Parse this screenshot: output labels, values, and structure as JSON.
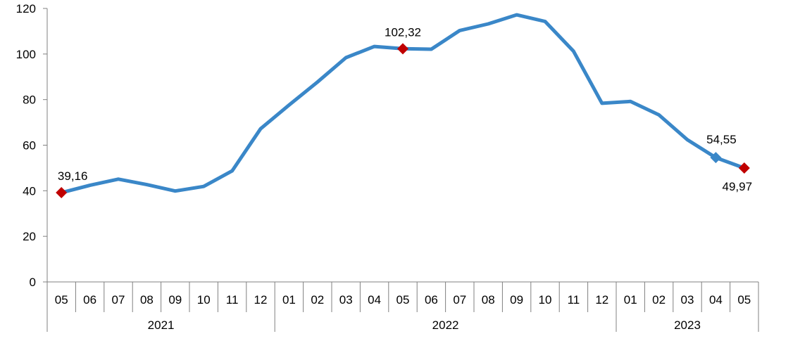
{
  "chart_data": {
    "type": "line",
    "title": "",
    "xlabel": "",
    "ylabel": "",
    "ylim": [
      0,
      120
    ],
    "yticks": [
      "0",
      "20",
      "40",
      "60",
      "80",
      "100",
      "120"
    ],
    "grid": false,
    "legend": "none",
    "line_color": "#3A87C8",
    "marker_color": "#C00000",
    "categories": [
      "05",
      "06",
      "07",
      "08",
      "09",
      "10",
      "11",
      "12",
      "01",
      "02",
      "03",
      "04",
      "05",
      "06",
      "07",
      "08",
      "09",
      "10",
      "11",
      "12",
      "01",
      "02",
      "03",
      "04",
      "05"
    ],
    "year_groups": [
      {
        "label": "2021",
        "start": 0,
        "end": 7
      },
      {
        "label": "2022",
        "start": 8,
        "end": 19
      },
      {
        "label": "2023",
        "start": 20,
        "end": 24
      }
    ],
    "series": [
      {
        "values": [
          39.16,
          42.4,
          45.1,
          42.7,
          39.9,
          41.9,
          48.7,
          67.2,
          77.6,
          87.7,
          98.4,
          103.3,
          102.32,
          102.1,
          110.3,
          113.2,
          117.2,
          114.3,
          101.2,
          78.4,
          79.2,
          73.3,
          62.4,
          54.55,
          49.97
        ]
      }
    ],
    "annotations": [
      {
        "index": 0,
        "text": "39,16",
        "marker": "diamond-red",
        "position": "above"
      },
      {
        "index": 12,
        "text": "102,32",
        "marker": "diamond-red",
        "position": "above"
      },
      {
        "index": 23,
        "text": "54,55",
        "marker": "diamond-blue",
        "position": "above"
      },
      {
        "index": 24,
        "text": "49,97",
        "marker": "diamond-red",
        "position": "below"
      }
    ]
  }
}
